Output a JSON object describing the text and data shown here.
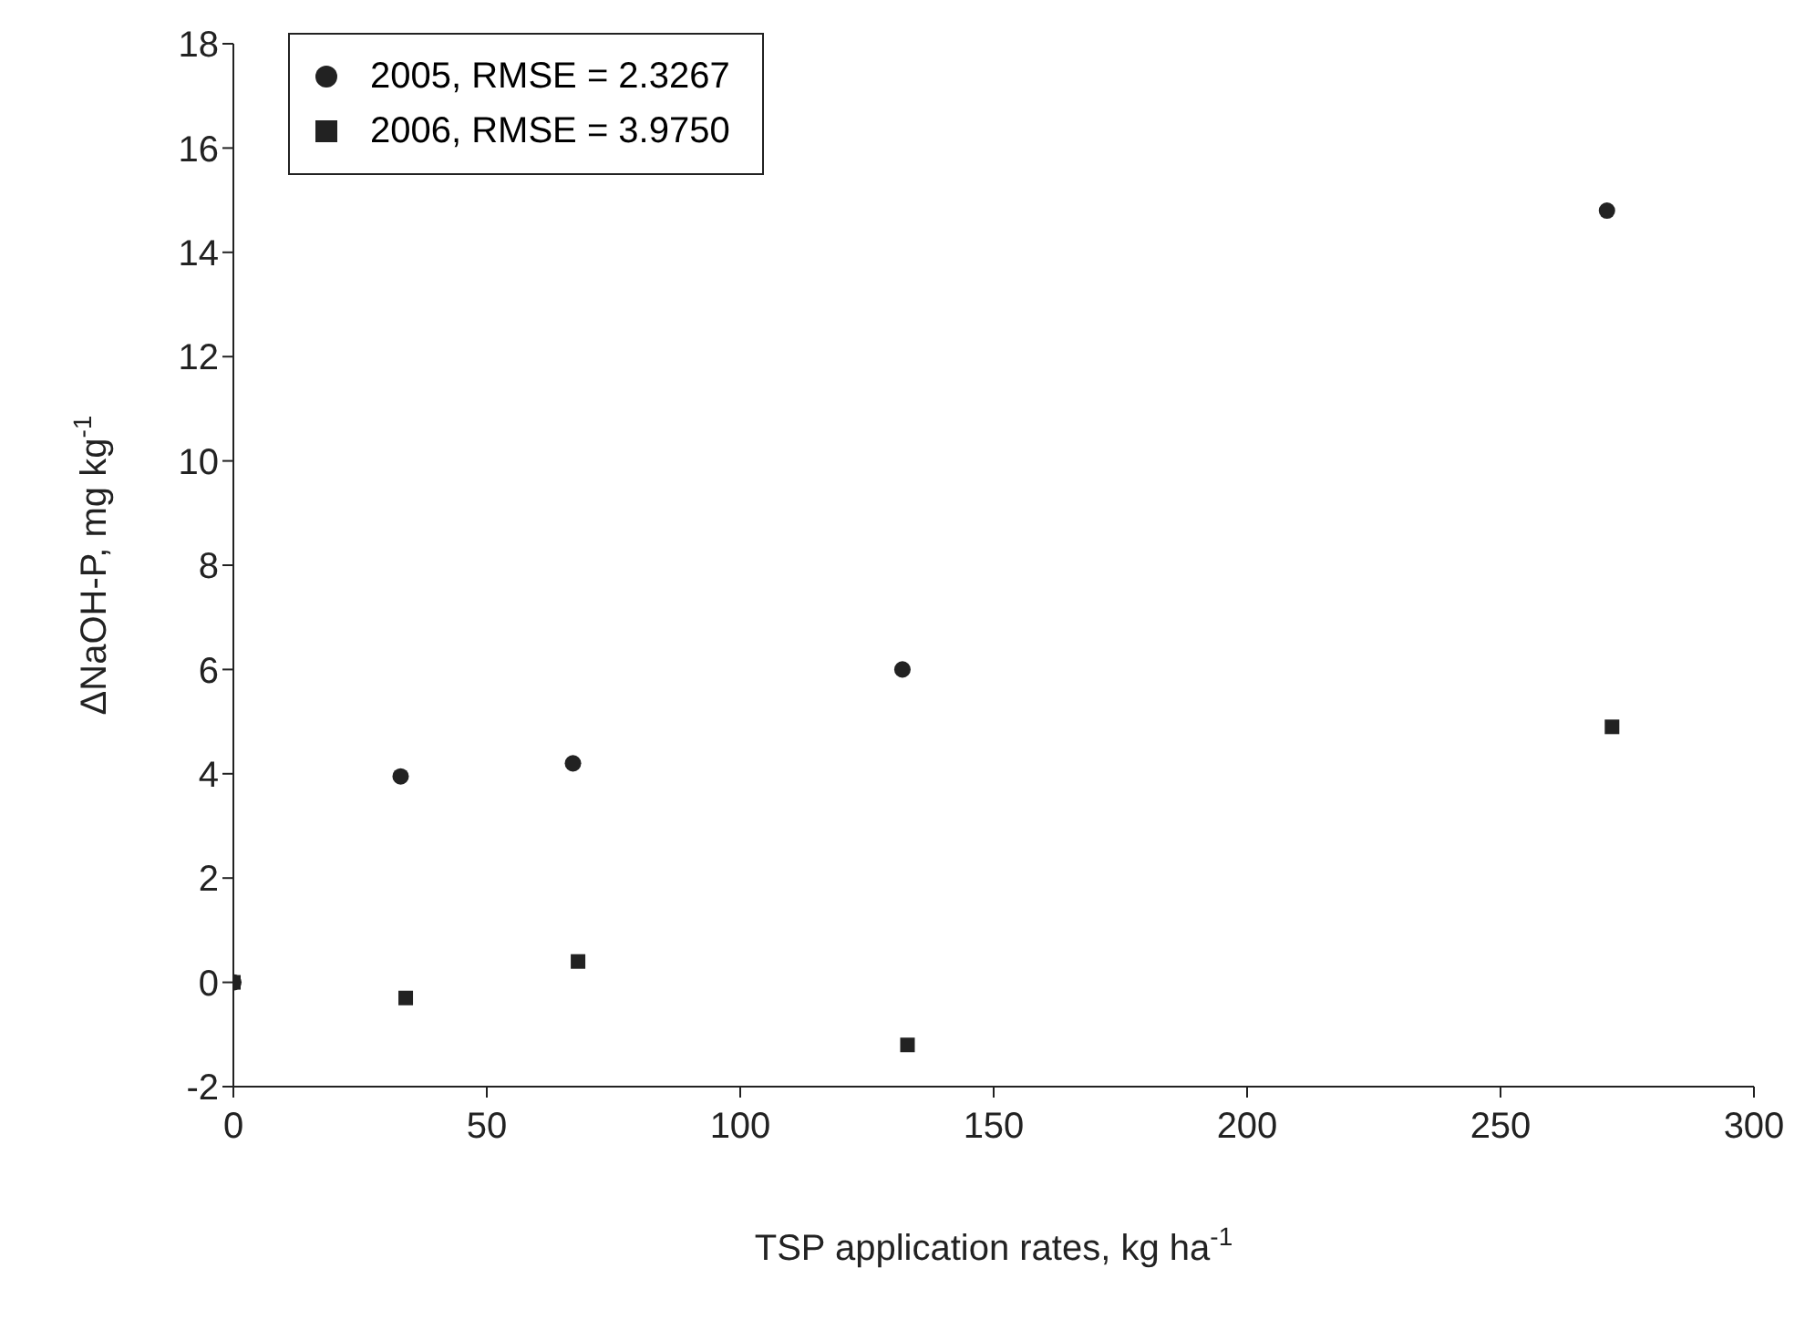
{
  "chart_data": {
    "type": "scatter",
    "xlabel": "TSP application rates, kg ha$^{-1}$",
    "ylabel": "ΔNaOH-P, mg kg$^{-1}$",
    "xlim": [
      0,
      300
    ],
    "xticks": [
      0,
      50,
      100,
      150,
      200,
      250,
      300
    ],
    "ylim": [
      -2,
      18
    ],
    "yticks": [
      -2,
      0,
      2,
      4,
      6,
      8,
      10,
      12,
      14,
      16,
      18
    ],
    "grid": false,
    "legend": "top left",
    "series": [
      {
        "name": "2005, RMSE = 2.3267",
        "color": "#222222",
        "marker": "circle",
        "x": [
          0,
          33,
          67,
          132,
          271
        ],
        "values": [
          0,
          3.95,
          4.2,
          6.0,
          14.8
        ]
      },
      {
        "name": "2006, RMSE = 3.9750",
        "color": "#222222",
        "marker": "square",
        "x": [
          0,
          34,
          68,
          133,
          272
        ],
        "values": [
          0,
          -0.3,
          0.4,
          -1.2,
          4.9
        ]
      }
    ]
  }
}
